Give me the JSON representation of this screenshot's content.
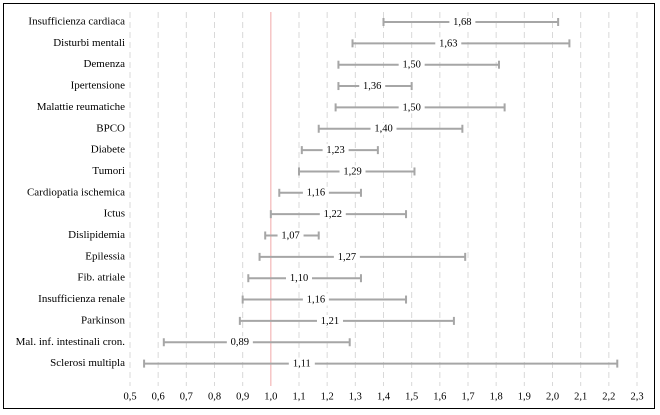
{
  "chart_data": {
    "type": "forest",
    "title": "",
    "xlabel": "",
    "ylabel": "",
    "xlim": [
      0.5,
      2.3
    ],
    "xticks": [
      "0,5",
      "0,6",
      "0,7",
      "0,8",
      "0,9",
      "1,0",
      "1,1",
      "1,2",
      "1,3",
      "1,4",
      "1,5",
      "1,6",
      "1,7",
      "1,8",
      "1,9",
      "2,0",
      "2,1",
      "2,2",
      "2,3"
    ],
    "reference_line": 1.0,
    "grid": "vertical dashed",
    "colors": {
      "interval": "#a6a6a6",
      "reference": "#f4b6b6",
      "grid": "#d9d9d9",
      "text": "#000000"
    },
    "rows": [
      {
        "label": "Insufficienza cardiaca",
        "estimate": 1.68,
        "estimate_label": "1,68",
        "low": 1.4,
        "high": 2.02
      },
      {
        "label": "Disturbi mentali",
        "estimate": 1.63,
        "estimate_label": "1,63",
        "low": 1.29,
        "high": 2.06
      },
      {
        "label": "Demenza",
        "estimate": 1.5,
        "estimate_label": "1,50",
        "low": 1.24,
        "high": 1.81
      },
      {
        "label": "Ipertensione",
        "estimate": 1.36,
        "estimate_label": "1,36",
        "low": 1.24,
        "high": 1.5
      },
      {
        "label": "Malattie reumatiche",
        "estimate": 1.5,
        "estimate_label": "1,50",
        "low": 1.23,
        "high": 1.83
      },
      {
        "label": "BPCO",
        "estimate": 1.4,
        "estimate_label": "1,40",
        "low": 1.17,
        "high": 1.68
      },
      {
        "label": "Diabete",
        "estimate": 1.23,
        "estimate_label": "1,23",
        "low": 1.11,
        "high": 1.38
      },
      {
        "label": "Tumori",
        "estimate": 1.29,
        "estimate_label": "1,29",
        "low": 1.1,
        "high": 1.51
      },
      {
        "label": "Cardiopatia ischemica",
        "estimate": 1.16,
        "estimate_label": "1,16",
        "low": 1.03,
        "high": 1.32
      },
      {
        "label": "Ictus",
        "estimate": 1.22,
        "estimate_label": "1,22",
        "low": 1.0,
        "high": 1.48
      },
      {
        "label": "Dislipidemia",
        "estimate": 1.07,
        "estimate_label": "1,07",
        "low": 0.98,
        "high": 1.17
      },
      {
        "label": "Epilessia",
        "estimate": 1.27,
        "estimate_label": "1,27",
        "low": 0.96,
        "high": 1.69
      },
      {
        "label": "Fib. atriale",
        "estimate": 1.1,
        "estimate_label": "1,10",
        "low": 0.92,
        "high": 1.32
      },
      {
        "label": "Insufficienza renale",
        "estimate": 1.16,
        "estimate_label": "1,16",
        "low": 0.9,
        "high": 1.48
      },
      {
        "label": "Parkinson",
        "estimate": 1.21,
        "estimate_label": "1,21",
        "low": 0.89,
        "high": 1.65
      },
      {
        "label": "Mal. inf. intestinali cron.",
        "estimate": 0.89,
        "estimate_label": "0,89",
        "low": 0.62,
        "high": 1.28
      },
      {
        "label": "Sclerosi multipla",
        "estimate": 1.11,
        "estimate_label": "1,11",
        "low": 0.55,
        "high": 2.23
      }
    ]
  }
}
